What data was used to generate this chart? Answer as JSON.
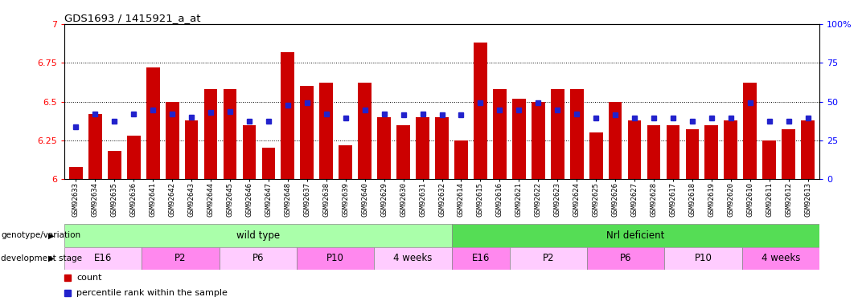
{
  "title": "GDS1693 / 1415921_a_at",
  "samples": [
    "GSM92633",
    "GSM92634",
    "GSM92635",
    "GSM92636",
    "GSM92641",
    "GSM92642",
    "GSM92643",
    "GSM92644",
    "GSM92645",
    "GSM92646",
    "GSM92647",
    "GSM92648",
    "GSM92637",
    "GSM92638",
    "GSM92639",
    "GSM92640",
    "GSM92629",
    "GSM92630",
    "GSM92631",
    "GSM92632",
    "GSM92614",
    "GSM92615",
    "GSM92616",
    "GSM92621",
    "GSM92622",
    "GSM92623",
    "GSM92624",
    "GSM92625",
    "GSM92626",
    "GSM92627",
    "GSM92628",
    "GSM92617",
    "GSM92618",
    "GSM92619",
    "GSM92620",
    "GSM92610",
    "GSM92611",
    "GSM92612",
    "GSM92613"
  ],
  "bar_values": [
    6.08,
    6.42,
    6.18,
    6.28,
    6.72,
    6.5,
    6.38,
    6.58,
    6.58,
    6.35,
    6.2,
    6.82,
    6.6,
    6.62,
    6.22,
    6.62,
    6.4,
    6.35,
    6.4,
    6.4,
    6.25,
    6.88,
    6.58,
    6.52,
    6.5,
    6.58,
    6.58,
    6.3,
    6.5,
    6.38,
    6.35,
    6.35,
    6.32,
    6.35,
    6.38,
    6.62,
    6.25,
    6.32,
    6.38
  ],
  "percentile_values": [
    6.335,
    6.42,
    6.375,
    6.42,
    6.445,
    6.42,
    6.4,
    6.43,
    6.435,
    6.375,
    6.375,
    6.475,
    6.495,
    6.42,
    6.395,
    6.445,
    6.42,
    6.415,
    6.42,
    6.415,
    6.415,
    6.495,
    6.445,
    6.445,
    6.495,
    6.445,
    6.42,
    6.395,
    6.415,
    6.395,
    6.395,
    6.395,
    6.375,
    6.395,
    6.395,
    6.495,
    6.375,
    6.375,
    6.395
  ],
  "ymin": 6.0,
  "ymax": 7.0,
  "yticks_left": [
    6.0,
    6.25,
    6.5,
    6.75,
    7.0
  ],
  "ytick_labels_left": [
    "6",
    "6.25",
    "6.5",
    "6.75",
    "7"
  ],
  "yticks_right": [
    0,
    25,
    50,
    75,
    100
  ],
  "ytick_labels_right": [
    "0",
    "25",
    "50",
    "75",
    "100%"
  ],
  "bar_color": "#cc0000",
  "percentile_color": "#2222cc",
  "background_color": "#ffffff",
  "wt_color": "#aaffaa",
  "nrl_color": "#55dd55",
  "stage_color_even": "#ffccff",
  "stage_color_odd": "#ff88ee",
  "groups": [
    {
      "label": "wild type",
      "start": 0,
      "end": 20
    },
    {
      "label": "Nrl deficient",
      "start": 20,
      "end": 39
    }
  ],
  "stages": [
    {
      "label": "E16",
      "start": 0,
      "end": 4
    },
    {
      "label": "P2",
      "start": 4,
      "end": 8
    },
    {
      "label": "P6",
      "start": 8,
      "end": 12
    },
    {
      "label": "P10",
      "start": 12,
      "end": 16
    },
    {
      "label": "4 weeks",
      "start": 16,
      "end": 20
    },
    {
      "label": "E16",
      "start": 20,
      "end": 23
    },
    {
      "label": "P2",
      "start": 23,
      "end": 27
    },
    {
      "label": "P6",
      "start": 27,
      "end": 31
    },
    {
      "label": "P10",
      "start": 31,
      "end": 35
    },
    {
      "label": "4 weeks",
      "start": 35,
      "end": 39
    }
  ],
  "row_label_genotype": "genotype/variation",
  "row_label_stage": "development stage",
  "legend_count": "count",
  "legend_percentile": "percentile rank within the sample",
  "arrow_char": "▶"
}
